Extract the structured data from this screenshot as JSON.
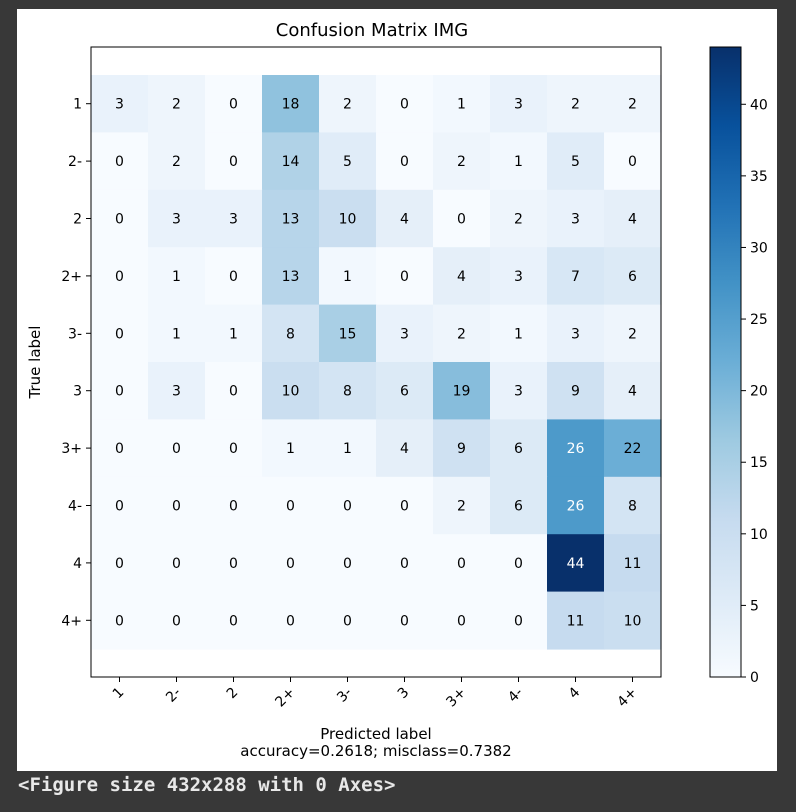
{
  "chart_data": {
    "type": "heatmap",
    "title": "Confusion Matrix IMG",
    "xlabel": "Predicted label",
    "xlabel_sub": "accuracy=0.2618; misclass=0.7382",
    "ylabel": "True label",
    "x_categories": [
      "1",
      "2-",
      "2",
      "2+",
      "3-",
      "3",
      "3+",
      "4-",
      "4",
      "4+"
    ],
    "y_categories": [
      "1",
      "2-",
      "2",
      "2+",
      "3-",
      "3",
      "3+",
      "4-",
      "4",
      "4+"
    ],
    "values": [
      [
        3,
        2,
        0,
        18,
        2,
        0,
        1,
        3,
        2,
        2
      ],
      [
        0,
        2,
        0,
        14,
        5,
        0,
        2,
        1,
        5,
        0
      ],
      [
        0,
        3,
        3,
        13,
        10,
        4,
        0,
        2,
        3,
        4
      ],
      [
        0,
        1,
        0,
        13,
        1,
        0,
        4,
        3,
        7,
        6
      ],
      [
        0,
        1,
        1,
        8,
        15,
        3,
        2,
        1,
        3,
        2
      ],
      [
        0,
        3,
        0,
        10,
        8,
        6,
        19,
        3,
        9,
        4
      ],
      [
        0,
        0,
        0,
        1,
        1,
        4,
        9,
        6,
        26,
        22
      ],
      [
        0,
        0,
        0,
        0,
        0,
        0,
        2,
        6,
        26,
        8
      ],
      [
        0,
        0,
        0,
        0,
        0,
        0,
        0,
        0,
        44,
        11
      ],
      [
        0,
        0,
        0,
        0,
        0,
        0,
        0,
        0,
        11,
        10
      ]
    ],
    "colormap": "Blues",
    "colorbar": {
      "range": [
        0,
        44
      ],
      "ticks": [
        0,
        5,
        10,
        15,
        20,
        25,
        30,
        35,
        40
      ]
    },
    "grid": false
  },
  "console_output": "<Figure size 432x288 with 0 Axes>"
}
